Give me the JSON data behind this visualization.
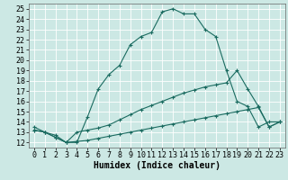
{
  "bg_color": "#cce8e4",
  "grid_color": "#b0d4d0",
  "line_color": "#1a6b60",
  "xlabel": "Humidex (Indice chaleur)",
  "xlabel_fontsize": 7,
  "tick_fontsize": 6,
  "xlim": [
    -0.5,
    23.5
  ],
  "ylim": [
    11.5,
    25.5
  ],
  "yticks": [
    12,
    13,
    14,
    15,
    16,
    17,
    18,
    19,
    20,
    21,
    22,
    23,
    24,
    25
  ],
  "xticks": [
    0,
    1,
    2,
    3,
    4,
    5,
    6,
    7,
    8,
    9,
    10,
    11,
    12,
    13,
    14,
    15,
    16,
    17,
    18,
    19,
    20,
    21,
    22,
    23
  ],
  "curve1_x": [
    0,
    1,
    2,
    3,
    4,
    5,
    6,
    7,
    8,
    9,
    10,
    11,
    12,
    13,
    14,
    15,
    16,
    17,
    18,
    19,
    20,
    21,
    22,
    23
  ],
  "curve1_y": [
    13.5,
    13.0,
    12.7,
    12.0,
    12.0,
    14.5,
    17.2,
    18.6,
    19.5,
    21.5,
    22.3,
    22.7,
    24.7,
    25.0,
    24.5,
    24.5,
    23.0,
    22.3,
    19.0,
    16.0,
    15.5,
    13.5,
    14.0,
    14.0
  ],
  "curve2_x": [
    0,
    1,
    2,
    3,
    4,
    5,
    6,
    7,
    8,
    9,
    10,
    11,
    12,
    13,
    14,
    15,
    16,
    17,
    18,
    19,
    20,
    21,
    22,
    23
  ],
  "curve2_y": [
    13.2,
    13.0,
    12.5,
    12.0,
    13.0,
    13.2,
    13.4,
    13.7,
    14.2,
    14.7,
    15.2,
    15.6,
    16.0,
    16.4,
    16.8,
    17.1,
    17.4,
    17.6,
    17.8,
    19.0,
    17.2,
    15.5,
    13.5,
    14.0
  ],
  "curve3_x": [
    0,
    1,
    2,
    3,
    4,
    5,
    6,
    7,
    8,
    9,
    10,
    11,
    12,
    13,
    14,
    15,
    16,
    17,
    18,
    19,
    20,
    21,
    22,
    23
  ],
  "curve3_y": [
    13.2,
    13.0,
    12.5,
    12.0,
    12.1,
    12.2,
    12.4,
    12.6,
    12.8,
    13.0,
    13.2,
    13.4,
    13.6,
    13.8,
    14.0,
    14.2,
    14.4,
    14.6,
    14.8,
    15.0,
    15.2,
    15.4,
    13.5,
    14.0
  ]
}
